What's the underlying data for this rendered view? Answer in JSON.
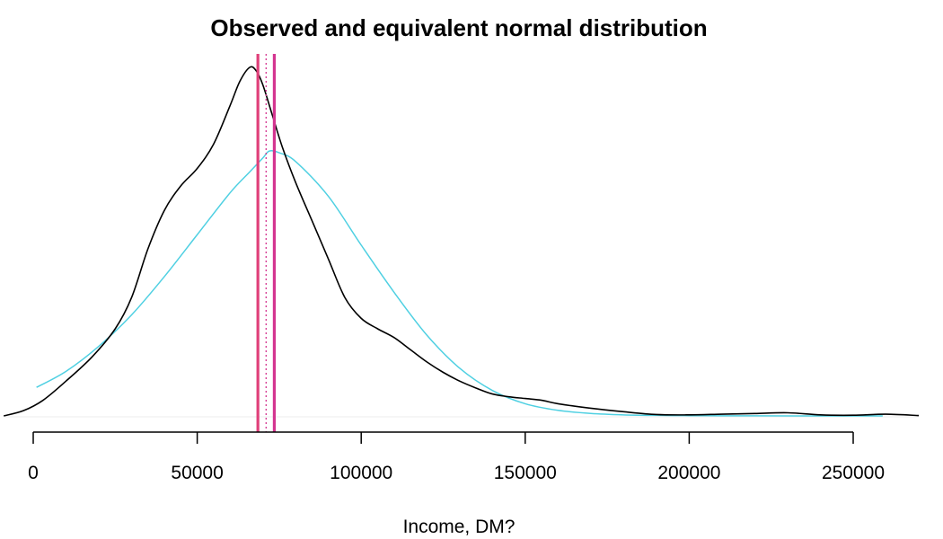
{
  "chart_data": {
    "type": "line",
    "title": "Observed and equivalent normal distribution",
    "xlabel": "Income, DM?",
    "ylabel": "",
    "xlim": [
      -9000,
      270000
    ],
    "ylim": [
      0,
      1.0
    ],
    "x_ticks": [
      0,
      50000,
      100000,
      150000,
      200000,
      250000
    ],
    "x_tick_labels": [
      "0",
      "50000",
      "100000",
      "150000",
      "200000",
      "250000"
    ],
    "grid": false,
    "series": [
      {
        "role": "observed-density",
        "color": "#000000",
        "x": [
          -9000,
          -3000,
          3000,
          10000,
          18000,
          25000,
          30000,
          35000,
          40000,
          45000,
          50000,
          55000,
          60000,
          63000,
          66000,
          68000,
          70000,
          73000,
          76000,
          80000,
          85000,
          90000,
          95000,
          100000,
          105000,
          110000,
          115000,
          120000,
          125000,
          130000,
          135000,
          140000,
          145000,
          150000,
          155000,
          160000,
          170000,
          180000,
          190000,
          200000,
          210000,
          220000,
          230000,
          240000,
          250000,
          260000,
          270000
        ],
        "y": [
          0.0,
          0.015,
          0.045,
          0.1,
          0.17,
          0.25,
          0.34,
          0.48,
          0.59,
          0.66,
          0.71,
          0.78,
          0.89,
          0.96,
          1.0,
          0.99,
          0.95,
          0.86,
          0.77,
          0.67,
          0.56,
          0.45,
          0.34,
          0.28,
          0.25,
          0.225,
          0.19,
          0.155,
          0.125,
          0.1,
          0.08,
          0.063,
          0.055,
          0.05,
          0.045,
          0.035,
          0.022,
          0.012,
          0.004,
          0.003,
          0.005,
          0.007,
          0.009,
          0.003,
          0.002,
          0.005,
          0.001
        ]
      },
      {
        "role": "normal-density",
        "color": "#4fd0e2",
        "x": [
          1000,
          10000,
          20000,
          30000,
          40000,
          50000,
          60000,
          66000,
          70000,
          72000,
          75000,
          80000,
          90000,
          100000,
          110000,
          120000,
          130000,
          140000,
          150000,
          160000,
          170000,
          180000,
          190000,
          200000,
          210000,
          220000,
          240000,
          259000
        ],
        "y": [
          0.082,
          0.128,
          0.2,
          0.29,
          0.4,
          0.52,
          0.64,
          0.7,
          0.74,
          0.76,
          0.755,
          0.73,
          0.63,
          0.49,
          0.355,
          0.232,
          0.137,
          0.073,
          0.035,
          0.016,
          0.007,
          0.003,
          0.0015,
          0.0008,
          0.0004,
          0.0002,
          0.0001,
          0.0
        ]
      }
    ],
    "vertical_lines": [
      {
        "x": 68500,
        "color": "#e0407a",
        "style": "solid"
      },
      {
        "x": 73500,
        "color": "#d43590",
        "style": "solid"
      },
      {
        "x": 71000,
        "color": "#d43590",
        "style": "dotted"
      }
    ]
  }
}
